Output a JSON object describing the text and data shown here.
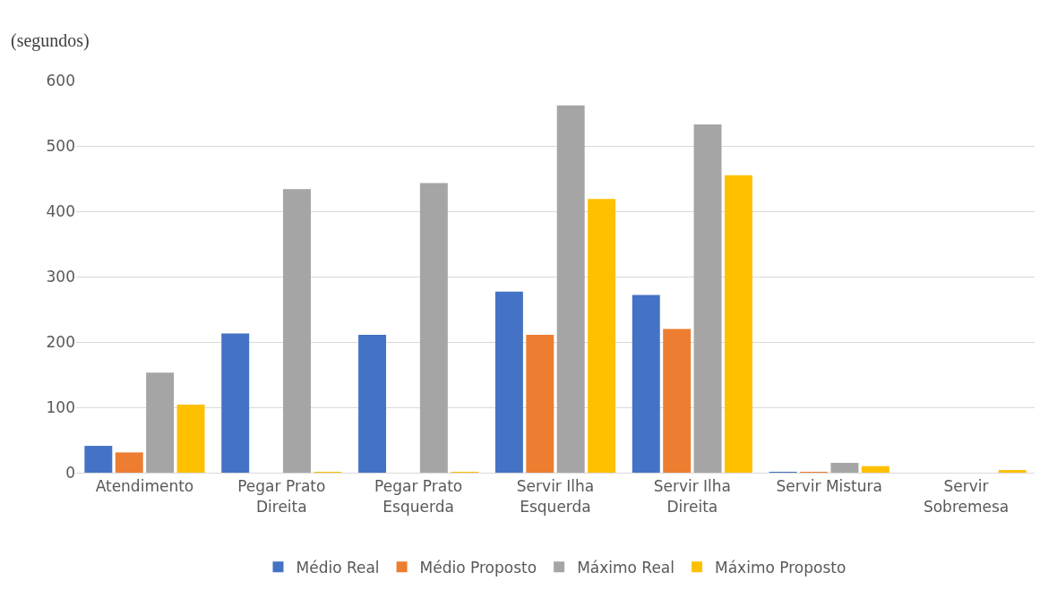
{
  "chart_data": {
    "type": "bar",
    "ylabel": "(segundos)",
    "categories": [
      "Atendimento",
      "Pegar Prato\nDireita",
      "Pegar Prato\nEsquerda",
      "Servir Ilha\nEsquerda",
      "Servir Ilha\nDireita",
      "Servir Mistura",
      "Servir\nSobremesa"
    ],
    "series": [
      {
        "name": "Médio Real",
        "color": "#4472c4",
        "values": [
          41,
          213,
          211,
          277,
          272,
          1,
          0
        ]
      },
      {
        "name": "Médio Proposto",
        "color": "#ed7d31",
        "values": [
          31,
          0,
          0,
          211,
          220,
          1,
          0
        ]
      },
      {
        "name": "Máximo Real",
        "color": "#a5a5a5",
        "values": [
          153,
          434,
          443,
          562,
          533,
          15,
          0
        ]
      },
      {
        "name": "Máximo Proposto",
        "color": "#ffc000",
        "values": [
          104,
          1,
          1,
          419,
          455,
          10,
          4
        ]
      }
    ],
    "ylim": [
      0,
      600
    ],
    "yticks": [
      0,
      100,
      200,
      300,
      400,
      500,
      600
    ],
    "grid": "y",
    "legend": "bottom"
  }
}
